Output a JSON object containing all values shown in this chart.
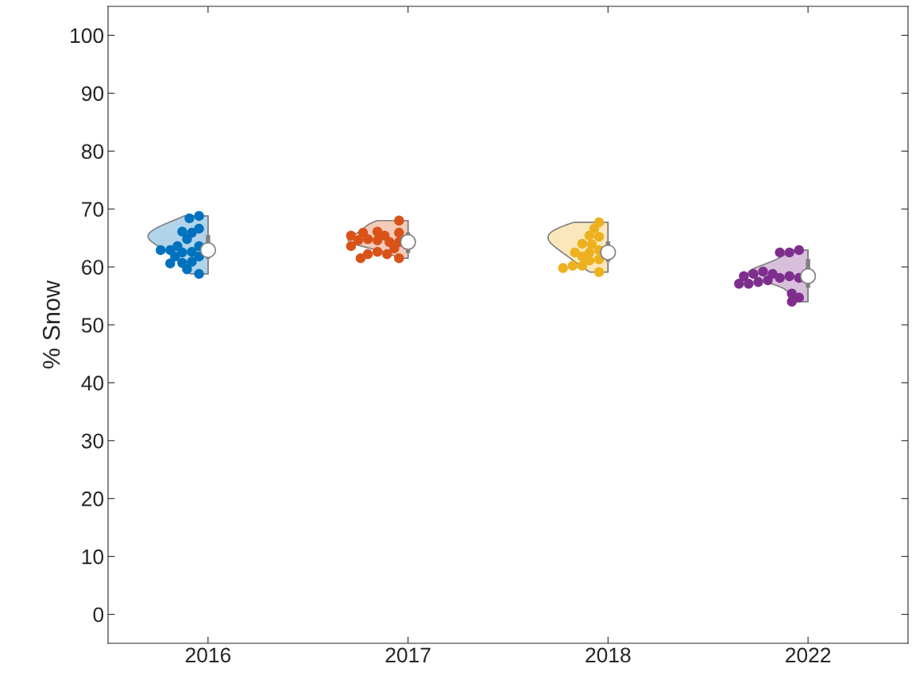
{
  "chart_data": {
    "type": "box",
    "ylabel": "% Snow",
    "categories": [
      "2016",
      "2017",
      "2018",
      "2022"
    ],
    "ylim": [
      -5,
      105
    ],
    "yticks": [
      0,
      10,
      20,
      30,
      40,
      50,
      60,
      70,
      80,
      90,
      100
    ],
    "grid": false,
    "boxes": [
      {
        "low": 58.8,
        "q1": 61.5,
        "median": 62.9,
        "q3": 65.4,
        "high": 68.8
      },
      {
        "low": 61.5,
        "q1": 62.5,
        "median": 64.3,
        "q3": 65.9,
        "high": 68.0
      },
      {
        "low": 59.1,
        "q1": 61.0,
        "median": 62.5,
        "q3": 64.3,
        "high": 67.7
      },
      {
        "low": 54.0,
        "q1": 56.5,
        "median": 58.4,
        "q3": 61.3,
        "high": 62.9
      }
    ],
    "series": [
      {
        "type": "scatter",
        "colors": [
          "#0072bd",
          "#d95319",
          "#edb120",
          "#7e2f8e"
        ],
        "values": [
          63.6,
          65.9,
          62.9,
          58.1
        ]
      },
      {
        "type": "scatter",
        "colors": [
          "#0072bd",
          "#d95319",
          "#edb120",
          "#7e2f8e"
        ],
        "values": [
          62.6,
          64.3,
          62.5,
          58.4
        ]
      },
      {
        "type": "scatter",
        "colors": [
          "#0072bd",
          "#d95319",
          "#edb120",
          "#7e2f8e"
        ],
        "values": [
          62.5,
          64.3,
          61.8,
          58.1
        ]
      },
      {
        "type": "scatter",
        "colors": [
          "#0072bd",
          "#d95319",
          "#edb120",
          "#7e2f8e"
        ],
        "values": [
          61.8,
          65.4,
          65.2,
          58.8
        ]
      },
      {
        "type": "scatter",
        "colors": [
          "#0072bd",
          "#d95319",
          "#edb120",
          "#7e2f8e"
        ],
        "values": [
          60.9,
          64.6,
          63.9,
          57.7
        ]
      },
      {
        "type": "scatter",
        "colors": [
          "#0072bd",
          "#d95319",
          "#edb120",
          "#7e2f8e"
        ],
        "values": [
          66.6,
          66.1,
          64.0,
          62.9
        ]
      },
      {
        "type": "scatter",
        "colors": [
          "#0072bd",
          "#d95319",
          "#edb120",
          "#7e2f8e"
        ],
        "values": [
          65.9,
          64.8,
          62.5,
          62.5
        ]
      },
      {
        "type": "scatter",
        "colors": [
          "#0072bd",
          "#d95319",
          "#edb120",
          "#7e2f8e"
        ],
        "values": [
          66.1,
          68.0,
          61.3,
          62.5
        ]
      },
      {
        "type": "scatter",
        "colors": [
          "#0072bd",
          "#d95319",
          "#edb120",
          "#7e2f8e"
        ],
        "values": [
          64.8,
          65.9,
          61.1,
          59.2
        ]
      },
      {
        "type": "scatter",
        "colors": [
          "#0072bd",
          "#d95319",
          "#edb120",
          "#7e2f8e"
        ],
        "values": [
          63.6,
          64.6,
          60.2,
          57.4
        ]
      },
      {
        "type": "scatter",
        "colors": [
          "#0072bd",
          "#d95319",
          "#edb120",
          "#7e2f8e"
        ],
        "values": [
          62.9,
          63.6,
          60.2,
          57.1
        ]
      },
      {
        "type": "scatter",
        "colors": [
          "#0072bd",
          "#d95319",
          "#edb120",
          "#7e2f8e"
        ],
        "values": [
          62.9,
          63.2,
          67.7,
          58.4
        ]
      },
      {
        "type": "scatter",
        "colors": [
          "#0072bd",
          "#d95319",
          "#edb120",
          "#7e2f8e"
        ],
        "values": [
          68.8,
          62.2,
          66.6,
          57.1
        ]
      },
      {
        "type": "scatter",
        "colors": [
          "#0072bd",
          "#d95319",
          "#edb120",
          "#7e2f8e"
        ],
        "values": [
          68.4,
          62.6,
          65.4,
          54.7
        ]
      },
      {
        "type": "scatter",
        "colors": [
          "#0072bd",
          "#d95319",
          "#edb120",
          "#7e2f8e"
        ],
        "values": [
          60.7,
          61.5,
          59.1,
          55.4
        ]
      },
      {
        "type": "scatter",
        "colors": [
          "#0072bd",
          "#d95319",
          "#edb120",
          "#7e2f8e"
        ],
        "values": [
          61.8,
          62.2,
          59.8,
          54.0
        ]
      },
      {
        "type": "scatter",
        "colors": [
          "#0072bd",
          "#d95319",
          null,
          "#7e2f8e"
        ],
        "values": [
          60.6,
          61.5,
          null,
          58.8
        ]
      },
      {
        "type": "scatter",
        "colors": [
          "#0072bd",
          "#d95319",
          null,
          null
        ],
        "values": [
          58.8,
          65.4,
          null,
          null
        ]
      },
      {
        "type": "scatter",
        "colors": [
          "#0072bd",
          null,
          null,
          null
        ],
        "values": [
          59.6,
          null,
          null,
          null
        ]
      }
    ]
  }
}
